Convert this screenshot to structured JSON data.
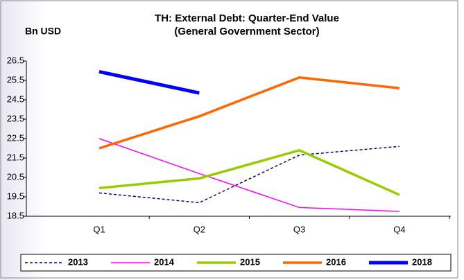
{
  "chart_data": {
    "type": "line",
    "title": [
      "TH: External Debt: Quarter-End Value",
      "(General Government Sector)"
    ],
    "y_label": "Bn USD",
    "categories": [
      "Q1",
      "Q2",
      "Q3",
      "Q4"
    ],
    "series": [
      {
        "name": "2013",
        "color": "#000080",
        "dash": true,
        "width": 1.5,
        "values": [
          19.7,
          19.2,
          21.65,
          22.1
        ]
      },
      {
        "name": "2014",
        "color": "#ff00ff",
        "dash": false,
        "width": 1.5,
        "values": [
          22.5,
          20.7,
          18.95,
          18.75
        ]
      },
      {
        "name": "2015",
        "color": "#99cc00",
        "dash": false,
        "width": 3.5,
        "values": [
          19.95,
          20.45,
          21.9,
          19.6
        ]
      },
      {
        "name": "2016",
        "color": "#ff6600",
        "dash": false,
        "width": 3.5,
        "values": [
          22.0,
          23.65,
          25.65,
          25.1
        ]
      },
      {
        "name": "2018",
        "color": "#0000ff",
        "dash": false,
        "width": 5,
        "values": [
          25.95,
          24.85,
          null,
          null
        ]
      }
    ],
    "ylim": [
      18.5,
      26.5
    ],
    "yticks": [
      18.5,
      19.5,
      20.5,
      21.5,
      22.5,
      23.5,
      24.5,
      25.5,
      26.5
    ],
    "legend": "bottom"
  }
}
